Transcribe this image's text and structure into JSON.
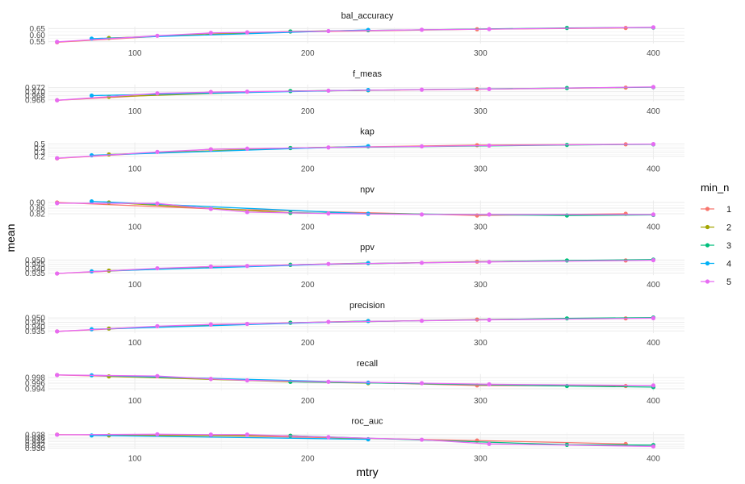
{
  "chart_data": {
    "type": "line",
    "xlabel": "mtry",
    "ylabel": "mean",
    "x_ticks": [
      100,
      200,
      300,
      400
    ],
    "xlim": [
      50,
      418
    ],
    "legend": {
      "title": "min_n",
      "position": "right",
      "entries": [
        {
          "label": "1",
          "color": "#F8766D"
        },
        {
          "label": "2",
          "color": "#A3A500"
        },
        {
          "label": "3",
          "color": "#00BF7D"
        },
        {
          "label": "4",
          "color": "#00B0F6"
        },
        {
          "label": "5",
          "color": "#E76BF3"
        }
      ]
    },
    "panels": [
      {
        "title": "bal_accuracy",
        "ylim": [
          0.535,
          0.665
        ],
        "y_ticks": [
          0.55,
          0.6,
          0.65
        ],
        "y_tick_labels": [
          "0.55",
          "0.60",
          "0.65"
        ],
        "series": [
          {
            "name": "1",
            "x": [
              55,
              144,
              298,
              384
            ],
            "y": [
              0.545,
              0.615,
              0.645,
              0.655
            ]
          },
          {
            "name": "2",
            "x": [
              85,
              190,
              235
            ],
            "y": [
              0.578,
              0.628,
              0.637
            ]
          },
          {
            "name": "3",
            "x": [
              190,
              350,
              400
            ],
            "y": [
              0.628,
              0.655,
              0.658
            ]
          },
          {
            "name": "4",
            "x": [
              75,
              235
            ],
            "y": [
              0.573,
              0.64
            ]
          },
          {
            "name": "5",
            "x": [
              55,
              113,
              144,
              165,
              212,
              266,
              305,
              400
            ],
            "y": [
              0.548,
              0.595,
              0.617,
              0.621,
              0.631,
              0.641,
              0.646,
              0.66
            ]
          }
        ]
      },
      {
        "title": "f_meas",
        "ylim": [
          0.9652,
          0.9735
        ],
        "y_ticks": [
          0.966,
          0.968,
          0.97,
          0.972
        ],
        "y_tick_labels": [
          "0.966",
          "0.968",
          "0.970",
          "0.972"
        ],
        "series": [
          {
            "name": "1",
            "x": [
              55,
              144,
              298,
              384
            ],
            "y": [
              0.9658,
              0.9698,
              0.9712,
              0.972
            ]
          },
          {
            "name": "2",
            "x": [
              85,
              190,
              235
            ],
            "y": [
              0.9675,
              0.9703,
              0.9707
            ]
          },
          {
            "name": "3",
            "x": [
              190,
              350,
              400
            ],
            "y": [
              0.9703,
              0.9718,
              0.9722
            ]
          },
          {
            "name": "4",
            "x": [
              75,
              235
            ],
            "y": [
              0.9681,
              0.9708
            ]
          },
          {
            "name": "5",
            "x": [
              55,
              113,
              144,
              165,
              212,
              266,
              305,
              400
            ],
            "y": [
              0.9658,
              0.9692,
              0.9698,
              0.97,
              0.9705,
              0.971,
              0.9713,
              0.9723
            ]
          }
        ]
      },
      {
        "title": "kap",
        "ylim": [
          0.125,
          0.535
        ],
        "y_ticks": [
          0.2,
          0.3,
          0.4,
          0.5
        ],
        "y_tick_labels": [
          "0.2",
          "0.3",
          "0.4",
          "0.5"
        ],
        "series": [
          {
            "name": "1",
            "x": [
              55,
              144,
              298,
              384
            ],
            "y": [
              0.15,
              0.37,
              0.47,
              0.49
            ]
          },
          {
            "name": "2",
            "x": [
              85,
              190,
              235
            ],
            "y": [
              0.245,
              0.4,
              0.44
            ]
          },
          {
            "name": "3",
            "x": [
              190,
              350,
              400
            ],
            "y": [
              0.4,
              0.475,
              0.49
            ]
          },
          {
            "name": "4",
            "x": [
              75,
              235
            ],
            "y": [
              0.225,
              0.445
            ]
          },
          {
            "name": "5",
            "x": [
              55,
              113,
              144,
              165,
              212,
              266,
              305,
              400
            ],
            "y": [
              0.155,
              0.305,
              0.37,
              0.385,
              0.415,
              0.44,
              0.46,
              0.495
            ]
          }
        ]
      },
      {
        "title": "npv",
        "ylim": [
          0.795,
          0.915
        ],
        "y_ticks": [
          0.82,
          0.86,
          0.9
        ],
        "y_tick_labels": [
          "0.82",
          "0.86",
          "0.90"
        ],
        "series": [
          {
            "name": "1",
            "x": [
              55,
              144,
              298,
              384
            ],
            "y": [
              0.9,
              0.855,
              0.808,
              0.82
            ]
          },
          {
            "name": "2",
            "x": [
              85,
              190,
              235
            ],
            "y": [
              0.9,
              0.827,
              0.82
            ]
          },
          {
            "name": "3",
            "x": [
              190,
              350,
              400
            ],
            "y": [
              0.827,
              0.808,
              0.812
            ]
          },
          {
            "name": "4",
            "x": [
              75,
              235
            ],
            "y": [
              0.908,
              0.82
            ]
          },
          {
            "name": "5",
            "x": [
              55,
              113,
              144,
              165,
              212,
              266,
              305,
              400
            ],
            "y": [
              0.895,
              0.893,
              0.855,
              0.832,
              0.822,
              0.815,
              0.815,
              0.815
            ]
          }
        ]
      },
      {
        "title": "ppv",
        "ylim": [
          0.9325,
          0.952
        ],
        "y_ticks": [
          0.935,
          0.94,
          0.945,
          0.95
        ],
        "y_tick_labels": [
          "0.935",
          "0.940",
          "0.945",
          "0.950"
        ],
        "series": [
          {
            "name": "1",
            "x": [
              55,
              144,
              298,
              384
            ],
            "y": [
              0.9345,
              0.9425,
              0.9482,
              0.9495
            ]
          },
          {
            "name": "2",
            "x": [
              85,
              190,
              235
            ],
            "y": [
              0.9378,
              0.9445,
              0.9465
            ]
          },
          {
            "name": "3",
            "x": [
              190,
              350,
              400
            ],
            "y": [
              0.9445,
              0.9495,
              0.9505
            ]
          },
          {
            "name": "4",
            "x": [
              75,
              235
            ],
            "y": [
              0.937,
              0.9465
            ]
          },
          {
            "name": "5",
            "x": [
              55,
              113,
              144,
              165,
              212,
              266,
              305,
              400
            ],
            "y": [
              0.9345,
              0.9405,
              0.9425,
              0.9432,
              0.9455,
              0.9468,
              0.9478,
              0.9498
            ]
          }
        ]
      },
      {
        "title": "precision",
        "ylim": [
          0.9325,
          0.952
        ],
        "y_ticks": [
          0.935,
          0.94,
          0.945,
          0.95
        ],
        "y_tick_labels": [
          "0.935",
          "0.940",
          "0.945",
          "0.950"
        ],
        "series": [
          {
            "name": "1",
            "x": [
              55,
              144,
              298,
              384
            ],
            "y": [
              0.9345,
              0.9425,
              0.9482,
              0.9495
            ]
          },
          {
            "name": "2",
            "x": [
              85,
              190,
              235
            ],
            "y": [
              0.9378,
              0.9445,
              0.9465
            ]
          },
          {
            "name": "3",
            "x": [
              190,
              350,
              400
            ],
            "y": [
              0.9445,
              0.9495,
              0.9505
            ]
          },
          {
            "name": "4",
            "x": [
              75,
              235
            ],
            "y": [
              0.937,
              0.9465
            ]
          },
          {
            "name": "5",
            "x": [
              55,
              113,
              144,
              165,
              212,
              266,
              305,
              400
            ],
            "y": [
              0.9345,
              0.9405,
              0.9425,
              0.9432,
              0.9455,
              0.9468,
              0.9478,
              0.9498
            ]
          }
        ]
      },
      {
        "title": "recall",
        "ylim": [
          0.9932,
          0.9992
        ],
        "y_ticks": [
          0.994,
          0.996,
          0.998
        ],
        "y_tick_labels": [
          "0.994",
          "0.996",
          "0.998"
        ],
        "series": [
          {
            "name": "1",
            "x": [
              55,
              144,
              298,
              384
            ],
            "y": [
              0.9989,
              0.9975,
              0.9952,
              0.995
            ]
          },
          {
            "name": "2",
            "x": [
              85,
              190,
              235
            ],
            "y": [
              0.9984,
              0.9965,
              0.996
            ]
          },
          {
            "name": "3",
            "x": [
              190,
              350,
              400
            ],
            "y": [
              0.9965,
              0.995,
              0.9946
            ]
          },
          {
            "name": "4",
            "x": [
              75,
              235
            ],
            "y": [
              0.9988,
              0.9962
            ]
          },
          {
            "name": "5",
            "x": [
              55,
              113,
              144,
              165,
              212,
              266,
              305,
              400
            ],
            "y": [
              0.9989,
              0.9985,
              0.9975,
              0.997,
              0.9965,
              0.996,
              0.9956,
              0.9952
            ]
          }
        ]
      },
      {
        "title": "roc_auc",
        "ylim": [
          0.9295,
          0.9395
        ],
        "y_ticks": [
          0.93,
          0.932,
          0.934,
          0.936,
          0.938
        ],
        "y_tick_labels": [
          "0.930",
          "0.932",
          "0.934",
          "0.936",
          "0.938"
        ],
        "series": [
          {
            "name": "1",
            "x": [
              55,
              144,
              298,
              384
            ],
            "y": [
              0.938,
              0.9375,
              0.9345,
              0.9325
            ]
          },
          {
            "name": "2",
            "x": [
              85,
              190,
              235
            ],
            "y": [
              0.9375,
              0.9373,
              0.9353
            ]
          },
          {
            "name": "3",
            "x": [
              190,
              350,
              400
            ],
            "y": [
              0.9373,
              0.932,
              0.9318
            ]
          },
          {
            "name": "4",
            "x": [
              75,
              235
            ],
            "y": [
              0.9375,
              0.9352
            ]
          },
          {
            "name": "5",
            "x": [
              55,
              113,
              144,
              165,
              212,
              266,
              305,
              400
            ],
            "y": [
              0.9379,
              0.9382,
              0.938,
              0.938,
              0.9365,
              0.935,
              0.9325,
              0.931
            ]
          }
        ]
      }
    ]
  }
}
